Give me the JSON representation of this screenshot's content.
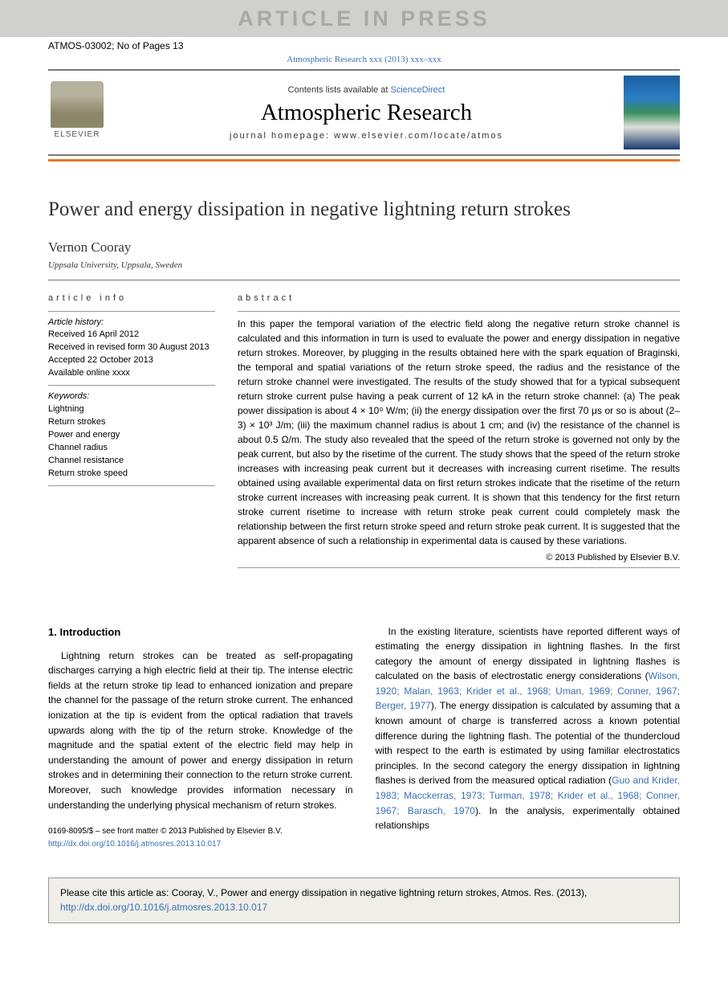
{
  "banner": "ARTICLE IN PRESS",
  "doc_id": "ATMOS-03002; No of Pages 13",
  "journal_ref": "Atmospheric Research xxx (2013) xxx–xxx",
  "masthead": {
    "publisher_logo_word": "ELSEVIER",
    "contents_line": "Contents lists available at ",
    "contents_link": "ScienceDirect",
    "journal_name": "Atmospheric Research",
    "homepage_label": "journal homepage: www.elsevier.com/locate/atmos"
  },
  "title": "Power and energy dissipation in negative lightning return strokes",
  "author": "Vernon Cooray",
  "affiliation": "Uppsala University, Uppsala, Sweden",
  "info": {
    "header": "article info",
    "history_label": "Article history:",
    "received": "Received 16 April 2012",
    "revised": "Received in revised form 30 August 2013",
    "accepted": "Accepted 22 October 2013",
    "online": "Available online xxxx",
    "keywords_label": "Keywords:",
    "keywords": [
      "Lightning",
      "Return strokes",
      "Power and energy",
      "Channel radius",
      "Channel resistance",
      "Return stroke speed"
    ]
  },
  "abstract": {
    "header": "abstract",
    "text": "In this paper the temporal variation of the electric field along the negative return stroke channel is calculated and this information in turn is used to evaluate the power and energy dissipation in negative return strokes. Moreover, by plugging in the results obtained here with the spark equation of Braginski, the temporal and spatial variations of the return stroke speed, the radius and the resistance of the return stroke channel were investigated. The results of the study showed that for a typical subsequent return stroke current pulse having a peak current of 12 kA in the return stroke channel: (a) The peak power dissipation is about 4 × 10⁹ W/m; (ii) the energy dissipation over the first 70 μs or so is about (2–3) × 10³ J/m; (iii) the maximum channel radius is about 1 cm; and (iv) the resistance of the channel is about 0.5 Ω/m. The study also revealed that the speed of the return stroke is governed not only by the peak current, but also by the risetime of the current. The study shows that the speed of the return stroke increases with increasing peak current but it decreases with increasing current risetime. The results obtained using available experimental data on first return strokes indicate that the risetime of the return stroke current increases with increasing peak current. It is shown that this tendency for the first return stroke current risetime to increase with return stroke peak current could completely mask the relationship between the first return stroke speed and return stroke peak current. It is suggested that the apparent absence of such a relationship in experimental data is caused by these variations.",
    "copyright": "© 2013 Published by Elsevier B.V."
  },
  "section1": {
    "heading": "1. Introduction",
    "para1": "Lightning return strokes can be treated as self-propagating discharges carrying a high electric field at their tip. The intense electric fields at the return stroke tip lead to enhanced ionization and prepare the channel for the passage of the return stroke current. The enhanced ionization at the tip is evident from the optical radiation that travels upwards along with the tip of the return stroke. Knowledge of the magnitude and the spatial extent of the electric field may help in understanding the amount of power and energy dissipation in return strokes and in determining their connection to the return stroke current. Moreover, such knowledge provides information necessary in understanding the underlying physical mechanism of return strokes.",
    "para2a": "In the existing literature, scientists have reported different ways of estimating the energy dissipation in lightning flashes. In the first category the amount of energy dissipated in lightning flashes is calculated on the basis of electrostatic energy considerations (",
    "para2_link1": "Wilson, 1920; Malan, 1963; Krider et al., 1968; Uman, 1969; Conner, 1967; Berger, 1977",
    "para2b": "). The energy dissipation is calculated by assuming that a known amount of charge is transferred across a known potential difference during the lightning flash. The potential of the thundercloud with respect to the earth is estimated by using familiar electrostatics principles. In the second category the energy dissipation in lightning flashes is derived from the measured optical radiation (",
    "para2_link2": "Guo and Krider, 1983; Macckerras, 1973; Turman, 1978; Krider et al., 1968; Conner, 1967; Barasch, 1970",
    "para2c": "). In the analysis, experimentally obtained relationships"
  },
  "footer_meta": {
    "issn_line": "0169-8095/$ – see front matter © 2013 Published by Elsevier B.V.",
    "doi": "http://dx.doi.org/10.1016/j.atmosres.2013.10.017"
  },
  "cite_box": {
    "pre": "Please cite this article as: Cooray, V., Power and energy dissipation in negative lightning return strokes, Atmos. Res. (2013), ",
    "doi": "http://dx.doi.org/10.1016/j.atmosres.2013.10.017"
  },
  "colors": {
    "banner_bg": "#d0d0ce",
    "banner_text": "#a8a8a4",
    "orange": "#e87722",
    "link": "#3b6fb5",
    "citebox_bg": "#efeee9"
  }
}
